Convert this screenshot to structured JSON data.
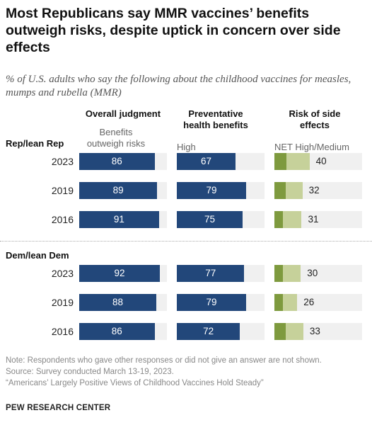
{
  "title": "Most Republicans say MMR vaccines’ benefits outweigh risks, despite uptick in concern over side effects",
  "subtitle": "% of U.S. adults who say the following about the childhood vaccines for measles, mumps and rubella (MMR)",
  "columns": [
    {
      "header": "Overall judgment",
      "subheader": "Benefits outweigh risks"
    },
    {
      "header": "Preventative health benefits",
      "subheader": "High"
    },
    {
      "header": "Risk of side effects",
      "subheader": "NET High/Medium"
    }
  ],
  "colors": {
    "bar": "#22477a",
    "risk_high": "#7e9a3e",
    "risk_medium": "#c6d19a",
    "bar_bg": "#f0f0f0"
  },
  "chart_data": {
    "type": "bar",
    "groups": [
      {
        "name": "Rep/lean Rep",
        "rows": [
          {
            "year": "2023",
            "overall": 86,
            "preventative": 67,
            "risk_net": 40,
            "risk_high": 14,
            "risk_medium": 26
          },
          {
            "year": "2019",
            "overall": 89,
            "preventative": 79,
            "risk_net": 32,
            "risk_high": 13,
            "risk_medium": 19
          },
          {
            "year": "2016",
            "overall": 91,
            "preventative": 75,
            "risk_net": 31,
            "risk_high": 10,
            "risk_medium": 21
          }
        ]
      },
      {
        "name": "Dem/lean Dem",
        "rows": [
          {
            "year": "2023",
            "overall": 92,
            "preventative": 77,
            "risk_net": 30,
            "risk_high": 10,
            "risk_medium": 20
          },
          {
            "year": "2019",
            "overall": 88,
            "preventative": 79,
            "risk_net": 26,
            "risk_high": 10,
            "risk_medium": 16
          },
          {
            "year": "2016",
            "overall": 86,
            "preventative": 72,
            "risk_net": 33,
            "risk_high": 13,
            "risk_medium": 20
          }
        ]
      }
    ],
    "scale_max": 100
  },
  "footer": {
    "note": "Note: Respondents who gave other responses or did not give an answer are not shown.",
    "source": "Source: Survey conducted March 13-19, 2023.",
    "report": "“Americans’ Largely Positive Views of Childhood Vaccines Hold Steady”",
    "brand": "PEW RESEARCH CENTER"
  }
}
